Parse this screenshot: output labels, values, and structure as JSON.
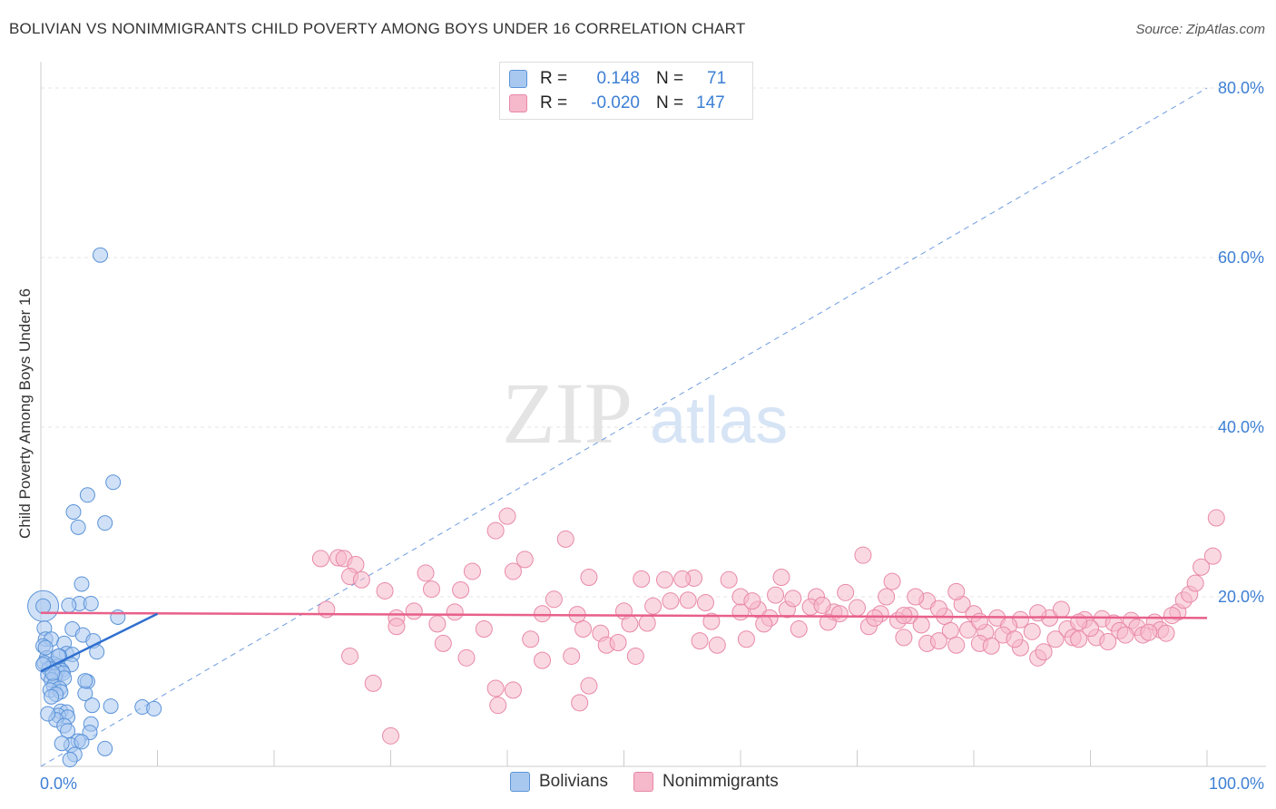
{
  "title": "BOLIVIAN VS NONIMMIGRANTS CHILD POVERTY AMONG BOYS UNDER 16 CORRELATION CHART",
  "source": "Source: ZipAtlas.com",
  "watermark": {
    "zip": "ZIP",
    "atlas": "atlas"
  },
  "legend_top": {
    "rows": [
      {
        "r_label": "R =",
        "r_value": "0.148",
        "n_label": "N =",
        "n_value": "71",
        "color": "#a9c8f0"
      },
      {
        "r_label": "R =",
        "r_value": "-0.020",
        "n_label": "N =",
        "n_value": "147",
        "color": "#f6b8cb"
      }
    ]
  },
  "legend_bottom": [
    {
      "label": "Bolivians",
      "color": "#a9c8f0"
    },
    {
      "label": "Nonimmigrants",
      "color": "#f6b8cb"
    }
  ],
  "chart_data": {
    "type": "scatter",
    "title": "BOLIVIAN VS NONIMMIGRANTS CHILD POVERTY AMONG BOYS UNDER 16 CORRELATION CHART",
    "xlabel": "",
    "ylabel": "Child Poverty Among Boys Under 16",
    "xlim": [
      0,
      100
    ],
    "ylim": [
      0,
      80
    ],
    "x_tick_labels": [
      "0.0%",
      "100.0%"
    ],
    "y_ticks": [
      20,
      40,
      60,
      80
    ],
    "y_tick_labels": [
      "20.0%",
      "40.0%",
      "60.0%",
      "80.0%"
    ],
    "grid": true,
    "legend_position": "top-center",
    "colors": {
      "bolivians_fill": "#a9c8f0",
      "bolivians_stroke": "#5b93d8",
      "bolivians_line": "#2f6fd0",
      "nonimmigrants_fill": "#f6b8cb",
      "nonimmigrants_stroke": "#e889a8",
      "nonimmigrants_line": "#e8608a",
      "diagonal": "#6d9be0",
      "axis_text": "#3d7fd4"
    },
    "series": [
      {
        "name": "Bolivians",
        "points": [
          [
            5.1,
            60.3
          ],
          [
            6.2,
            33.5
          ],
          [
            4.0,
            32.0
          ],
          [
            2.8,
            30.0
          ],
          [
            3.2,
            28.2
          ],
          [
            5.5,
            28.7
          ],
          [
            3.5,
            21.5
          ],
          [
            3.3,
            19.2
          ],
          [
            4.3,
            19.2
          ],
          [
            2.4,
            19.0
          ],
          [
            0.2,
            18.9
          ],
          [
            6.6,
            17.6
          ],
          [
            0.3,
            16.3
          ],
          [
            2.7,
            16.2
          ],
          [
            3.6,
            15.5
          ],
          [
            0.4,
            15.0
          ],
          [
            0.9,
            15.0
          ],
          [
            4.5,
            14.8
          ],
          [
            2.0,
            14.5
          ],
          [
            0.2,
            14.2
          ],
          [
            4.8,
            13.5
          ],
          [
            2.2,
            13.3
          ],
          [
            2.7,
            13.2
          ],
          [
            1.6,
            13.0
          ],
          [
            0.5,
            12.8
          ],
          [
            0.3,
            12.2
          ],
          [
            1.1,
            12.1
          ],
          [
            2.6,
            12.0
          ],
          [
            1.5,
            11.8
          ],
          [
            0.7,
            11.5
          ],
          [
            1.8,
            11.3
          ],
          [
            1.4,
            11.2
          ],
          [
            1.9,
            11.0
          ],
          [
            0.6,
            10.8
          ],
          [
            1.2,
            10.6
          ],
          [
            2.0,
            10.4
          ],
          [
            0.9,
            10.2
          ],
          [
            4.0,
            10.0
          ],
          [
            1.1,
            9.5
          ],
          [
            1.6,
            9.2
          ],
          [
            0.8,
            9.0
          ],
          [
            1.7,
            8.8
          ],
          [
            1.3,
            8.5
          ],
          [
            3.8,
            8.6
          ],
          [
            0.9,
            8.2
          ],
          [
            4.4,
            7.2
          ],
          [
            6.0,
            7.1
          ],
          [
            8.7,
            7.0
          ],
          [
            9.7,
            6.8
          ],
          [
            1.7,
            6.5
          ],
          [
            2.2,
            6.4
          ],
          [
            1.5,
            6.0
          ],
          [
            2.3,
            5.8
          ],
          [
            1.3,
            5.5
          ],
          [
            4.3,
            5.0
          ],
          [
            2.0,
            4.8
          ],
          [
            2.3,
            4.2
          ],
          [
            4.2,
            4.0
          ],
          [
            3.2,
            3.0
          ],
          [
            2.6,
            2.5
          ],
          [
            3.5,
            2.9
          ],
          [
            1.8,
            2.7
          ],
          [
            5.5,
            2.1
          ],
          [
            2.9,
            1.4
          ],
          [
            2.5,
            0.8
          ],
          [
            0.6,
            6.2
          ],
          [
            3.8,
            10.1
          ],
          [
            0.4,
            14.0
          ],
          [
            1.0,
            11.0
          ],
          [
            1.5,
            13.0
          ],
          [
            0.2,
            12.0
          ]
        ],
        "trend": {
          "x": [
            0,
            10
          ],
          "y": [
            11.2,
            18.0
          ]
        }
      },
      {
        "name": "Nonimmigrants",
        "points": [
          [
            40.0,
            29.5
          ],
          [
            39.0,
            27.8
          ],
          [
            45.0,
            26.8
          ],
          [
            24.0,
            24.5
          ],
          [
            25.5,
            24.6
          ],
          [
            26.0,
            24.5
          ],
          [
            27.0,
            23.8
          ],
          [
            33.0,
            22.8
          ],
          [
            37.0,
            23.0
          ],
          [
            40.5,
            23.0
          ],
          [
            41.5,
            24.4
          ],
          [
            26.5,
            22.4
          ],
          [
            27.5,
            22.0
          ],
          [
            29.5,
            20.7
          ],
          [
            36.0,
            20.8
          ],
          [
            33.5,
            20.9
          ],
          [
            44.0,
            19.7
          ],
          [
            47.0,
            22.3
          ],
          [
            51.5,
            22.1
          ],
          [
            53.5,
            22.0
          ],
          [
            56.0,
            22.2
          ],
          [
            59.0,
            22.0
          ],
          [
            63.5,
            22.3
          ],
          [
            66.5,
            20.0
          ],
          [
            70.5,
            24.9
          ],
          [
            73.0,
            21.8
          ],
          [
            69.0,
            20.5
          ],
          [
            76.0,
            19.5
          ],
          [
            79.0,
            19.1
          ],
          [
            75.0,
            20.0
          ],
          [
            78.5,
            20.6
          ],
          [
            55.0,
            22.1
          ],
          [
            24.5,
            18.5
          ],
          [
            30.5,
            17.5
          ],
          [
            32.0,
            18.3
          ],
          [
            35.5,
            18.2
          ],
          [
            43.0,
            18.0
          ],
          [
            46.0,
            17.9
          ],
          [
            50.0,
            18.3
          ],
          [
            52.5,
            18.9
          ],
          [
            54.0,
            19.5
          ],
          [
            57.0,
            19.3
          ],
          [
            60.0,
            18.2
          ],
          [
            61.5,
            18.5
          ],
          [
            64.0,
            18.5
          ],
          [
            66.0,
            18.8
          ],
          [
            68.0,
            18.2
          ],
          [
            70.0,
            18.7
          ],
          [
            72.0,
            18.0
          ],
          [
            74.5,
            17.8
          ],
          [
            77.5,
            17.7
          ],
          [
            80.0,
            18.0
          ],
          [
            82.0,
            17.5
          ],
          [
            84.0,
            17.3
          ],
          [
            86.5,
            17.5
          ],
          [
            87.5,
            18.5
          ],
          [
            89.5,
            17.3
          ],
          [
            91.0,
            17.4
          ],
          [
            92.0,
            16.9
          ],
          [
            93.5,
            17.2
          ],
          [
            95.5,
            17.0
          ],
          [
            97.5,
            18.2
          ],
          [
            98.0,
            19.6
          ],
          [
            98.5,
            20.3
          ],
          [
            99.0,
            21.6
          ],
          [
            99.5,
            23.5
          ],
          [
            100.5,
            24.8
          ],
          [
            100.8,
            29.3
          ],
          [
            30.5,
            16.5
          ],
          [
            34.0,
            16.8
          ],
          [
            38.0,
            16.2
          ],
          [
            42.0,
            15.0
          ],
          [
            46.5,
            16.2
          ],
          [
            48.0,
            15.7
          ],
          [
            50.5,
            16.8
          ],
          [
            52.0,
            16.9
          ],
          [
            57.5,
            17.1
          ],
          [
            62.5,
            17.5
          ],
          [
            65.0,
            16.2
          ],
          [
            67.5,
            17.0
          ],
          [
            71.0,
            16.5
          ],
          [
            73.5,
            17.2
          ],
          [
            75.5,
            16.7
          ],
          [
            78.0,
            16.0
          ],
          [
            79.5,
            16.1
          ],
          [
            81.0,
            15.8
          ],
          [
            83.0,
            16.6
          ],
          [
            85.0,
            15.9
          ],
          [
            88.0,
            16.2
          ],
          [
            90.5,
            15.2
          ],
          [
            92.5,
            16.0
          ],
          [
            94.0,
            16.4
          ],
          [
            96.0,
            16.1
          ],
          [
            26.5,
            13.0
          ],
          [
            34.5,
            14.5
          ],
          [
            36.5,
            12.8
          ],
          [
            43.0,
            12.5
          ],
          [
            45.5,
            13.0
          ],
          [
            48.5,
            14.3
          ],
          [
            49.5,
            14.6
          ],
          [
            51.0,
            13.0
          ],
          [
            58.0,
            14.3
          ],
          [
            60.5,
            15.0
          ],
          [
            76.0,
            14.5
          ],
          [
            78.5,
            14.3
          ],
          [
            80.5,
            14.5
          ],
          [
            82.5,
            15.5
          ],
          [
            84.0,
            14.0
          ],
          [
            85.5,
            12.8
          ],
          [
            86.0,
            13.5
          ],
          [
            87.0,
            15.0
          ],
          [
            88.5,
            15.2
          ],
          [
            89.0,
            15.0
          ],
          [
            91.5,
            14.7
          ],
          [
            94.5,
            15.5
          ],
          [
            96.5,
            15.7
          ],
          [
            28.5,
            9.8
          ],
          [
            39.0,
            9.2
          ],
          [
            40.5,
            9.0
          ],
          [
            47.0,
            9.5
          ],
          [
            46.2,
            7.5
          ],
          [
            39.2,
            7.2
          ],
          [
            30.0,
            3.6
          ],
          [
            56.5,
            14.8
          ],
          [
            62.0,
            16.8
          ],
          [
            74.0,
            15.2
          ],
          [
            77.0,
            14.8
          ],
          [
            81.5,
            14.2
          ],
          [
            83.5,
            15.0
          ],
          [
            90.0,
            16.3
          ],
          [
            93.0,
            15.5
          ],
          [
            95.0,
            15.8
          ],
          [
            97.0,
            17.8
          ],
          [
            63.0,
            20.2
          ],
          [
            67.0,
            19.0
          ],
          [
            72.5,
            20.0
          ],
          [
            55.5,
            19.6
          ],
          [
            60.0,
            20.0
          ],
          [
            61.0,
            19.5
          ],
          [
            64.5,
            19.8
          ],
          [
            68.5,
            18.0
          ],
          [
            71.5,
            17.5
          ],
          [
            74.0,
            17.8
          ],
          [
            77.0,
            18.6
          ],
          [
            80.5,
            17.1
          ],
          [
            85.5,
            18.1
          ],
          [
            89.0,
            17.0
          ]
        ],
        "trend": {
          "x": [
            0,
            100
          ],
          "y": [
            18.1,
            17.5
          ]
        }
      }
    ]
  }
}
